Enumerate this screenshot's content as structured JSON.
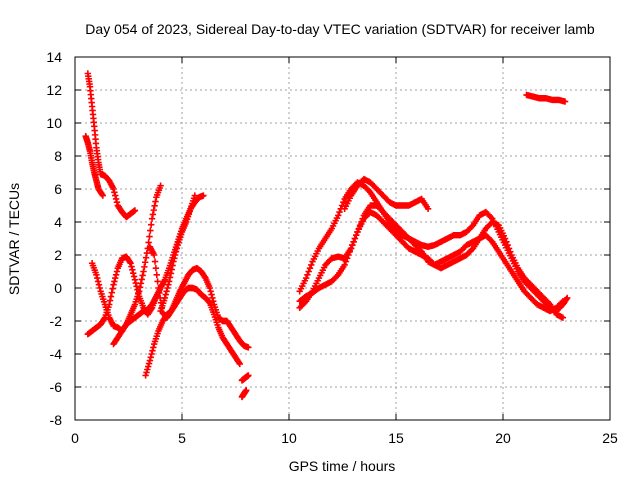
{
  "chart_data": {
    "type": "scatter",
    "title": "Day 054 of 2023, Sidereal Day-to-day VTEC variation (SDTVAR) for receiver lamb",
    "xlabel": "GPS time / hours",
    "ylabel": "SDTVAR / TECUs",
    "xlim": [
      0,
      25
    ],
    "ylim": [
      -8,
      14
    ],
    "xticks": [
      0,
      5,
      10,
      15,
      20,
      25
    ],
    "yticks": [
      -8,
      -6,
      -4,
      -2,
      0,
      2,
      4,
      6,
      8,
      10,
      12,
      14
    ],
    "grid": true,
    "marker": "+",
    "color": "#ff0000",
    "series": [
      {
        "name": "s1",
        "x": [
          0.6,
          0.7,
          0.8,
          0.9,
          1.0,
          1.1,
          1.2,
          1.4,
          1.6,
          1.8,
          2.0,
          2.2,
          2.4,
          2.6,
          2.8
        ],
        "y": [
          13.0,
          12.2,
          11.0,
          9.8,
          8.5,
          7.6,
          6.9,
          6.8,
          6.5,
          6.0,
          5.0,
          4.6,
          4.3,
          4.5,
          4.7
        ]
      },
      {
        "name": "s2",
        "x": [
          0.5,
          0.6,
          0.7,
          0.8,
          0.9,
          1.0,
          1.1,
          1.3
        ],
        "y": [
          9.2,
          8.8,
          8.3,
          7.6,
          7.0,
          6.5,
          6.0,
          5.6
        ]
      },
      {
        "name": "s3",
        "x": [
          0.6,
          0.8,
          1.0,
          1.2,
          1.4,
          1.6,
          1.8,
          2.0,
          2.2,
          2.4,
          2.6,
          2.8,
          3.0,
          3.2,
          3.4,
          3.6,
          3.8
        ],
        "y": [
          -2.8,
          -2.6,
          -2.4,
          -2.2,
          -1.8,
          -1.0,
          0.2,
          1.2,
          1.8,
          1.9,
          1.5,
          0.5,
          -0.5,
          -1.2,
          -1.6,
          -1.2,
          -0.5
        ]
      },
      {
        "name": "s4",
        "x": [
          0.8,
          1.0,
          1.2,
          1.4,
          1.6,
          1.8,
          2.0,
          2.2,
          2.4,
          2.6,
          2.8,
          3.0,
          3.2,
          3.4,
          3.6,
          3.8,
          4.0
        ],
        "y": [
          1.5,
          0.8,
          -0.2,
          -1.0,
          -1.8,
          -2.3,
          -2.4,
          -2.6,
          -2.2,
          -1.6,
          -1.0,
          -0.2,
          1.0,
          2.4,
          4.2,
          5.5,
          6.2
        ]
      },
      {
        "name": "s5",
        "x": [
          1.8,
          2.0,
          2.2,
          2.4,
          2.6,
          2.8,
          3.0,
          3.2,
          3.4,
          3.6,
          3.8,
          4.0,
          4.2,
          4.4,
          4.6,
          4.8,
          5.0,
          5.2,
          5.4,
          5.6,
          5.8,
          6.0
        ],
        "y": [
          -3.4,
          -3.0,
          -2.6,
          -2.2,
          -2.0,
          -1.8,
          -1.6,
          -1.4,
          -1.3,
          -1.0,
          -0.5,
          0.0,
          0.5,
          1.2,
          2.0,
          2.8,
          3.6,
          4.2,
          4.8,
          5.2,
          5.5,
          5.6
        ]
      },
      {
        "name": "s6",
        "x": [
          3.3,
          3.5,
          3.7,
          3.9,
          4.1,
          4.3,
          4.5,
          4.7,
          4.9,
          5.1,
          5.3,
          5.5,
          5.7,
          5.9,
          6.1,
          6.3,
          6.5,
          6.7,
          6.9,
          7.1,
          7.3,
          7.5,
          7.7
        ],
        "y": [
          -5.3,
          -4.4,
          -3.4,
          -2.6,
          -2.0,
          -1.6,
          -1.4,
          -1.0,
          -0.6,
          -0.2,
          0.0,
          0.0,
          -0.1,
          -0.4,
          -0.6,
          -0.9,
          -1.6,
          -2.4,
          -3.0,
          -3.4,
          -3.8,
          -4.2,
          -4.6
        ]
      },
      {
        "name": "s7",
        "x": [
          3.5,
          3.7,
          3.9,
          4.1,
          4.3,
          4.5,
          4.7,
          4.9,
          5.1,
          5.3,
          5.5,
          5.7,
          5.9,
          6.1,
          6.3,
          6.5,
          6.7,
          6.9,
          7.1,
          7.3,
          7.5,
          7.7,
          7.9,
          8.1
        ],
        "y": [
          2.5,
          2.0,
          0.0,
          -1.5,
          -1.8,
          -1.4,
          -0.8,
          -0.2,
          0.3,
          0.8,
          1.1,
          1.2,
          1.0,
          0.6,
          0.0,
          -1.0,
          -1.8,
          -2.0,
          -2.0,
          -2.4,
          -2.8,
          -3.2,
          -3.5,
          -3.6
        ]
      },
      {
        "name": "s8",
        "x": [
          4.0,
          4.2,
          4.4,
          4.6,
          4.8,
          5.0,
          5.2,
          5.4,
          5.6
        ],
        "y": [
          -1.4,
          -0.6,
          0.4,
          1.6,
          2.6,
          3.4,
          4.0,
          4.8,
          5.6
        ]
      },
      {
        "name": "s9",
        "x": [
          7.8,
          7.9,
          8.0,
          8.1
        ],
        "y": [
          -5.6,
          -5.5,
          -5.4,
          -5.3
        ]
      },
      {
        "name": "s10",
        "x": [
          7.8,
          7.9,
          8.0
        ],
        "y": [
          -6.6,
          -6.4,
          -6.2
        ]
      },
      {
        "name": "s11",
        "x": [
          10.5,
          10.8,
          11.1,
          11.4,
          11.7,
          12.0,
          12.3,
          12.6,
          12.9,
          13.2,
          13.5,
          13.8,
          14.1,
          14.4,
          14.7,
          15.0,
          15.3,
          15.6,
          15.9,
          16.2,
          16.5,
          16.8,
          17.1,
          17.4,
          17.7,
          18.0,
          18.3,
          18.6,
          18.9,
          19.2,
          19.5,
          19.8,
          20.1,
          20.4,
          20.7,
          21.0,
          21.3,
          21.6,
          21.9,
          22.2,
          22.5,
          22.8,
          23.0
        ],
        "y": [
          -0.2,
          0.6,
          1.6,
          2.4,
          3.0,
          3.6,
          4.4,
          5.4,
          6.0,
          6.4,
          6.2,
          5.8,
          5.2,
          4.6,
          4.2,
          3.8,
          3.4,
          3.0,
          2.8,
          2.6,
          2.5,
          2.6,
          2.8,
          3.0,
          3.2,
          3.2,
          3.4,
          3.8,
          4.4,
          4.6,
          4.2,
          3.4,
          2.6,
          1.8,
          1.0,
          0.4,
          0.0,
          -0.4,
          -0.8,
          -1.2,
          -1.4,
          -1.0,
          -0.6
        ]
      },
      {
        "name": "s12",
        "x": [
          10.5,
          10.8,
          11.1,
          11.4,
          11.7,
          12.0,
          12.3,
          12.6,
          12.9,
          13.2,
          13.5,
          13.8,
          14.1,
          14.4,
          14.7,
          15.0,
          15.3,
          15.6,
          15.9,
          16.2,
          16.5,
          16.8,
          17.1,
          17.4,
          17.7,
          18.0,
          18.3,
          18.6,
          18.9,
          19.2,
          19.5,
          19.8,
          20.1,
          20.4,
          20.7,
          21.0,
          21.3,
          21.6,
          21.9,
          22.2,
          22.5,
          22.8
        ],
        "y": [
          -1.2,
          -0.8,
          -0.2,
          0.6,
          1.4,
          1.8,
          1.9,
          1.8,
          2.4,
          3.4,
          4.2,
          4.6,
          4.4,
          4.0,
          3.6,
          3.2,
          2.8,
          2.4,
          2.2,
          2.0,
          1.8,
          1.4,
          1.2,
          1.4,
          1.6,
          1.8,
          2.0,
          2.4,
          3.0,
          3.6,
          4.0,
          3.8,
          3.0,
          2.0,
          1.2,
          0.6,
          0.2,
          -0.2,
          -0.6,
          -1.0,
          -1.6,
          -1.8
        ]
      },
      {
        "name": "s13",
        "x": [
          10.5,
          10.8,
          11.1,
          11.4,
          11.7,
          12.0,
          12.3,
          12.6,
          12.9,
          13.2,
          13.5,
          13.8,
          14.1,
          14.4,
          14.7,
          15.0,
          15.3,
          15.6,
          15.9,
          16.2,
          16.5,
          16.8,
          17.1,
          17.4,
          17.7,
          18.0,
          18.3,
          18.6,
          18.9,
          19.2,
          19.5,
          19.8,
          20.1,
          20.4,
          20.7,
          21.0,
          21.3,
          21.6,
          21.9,
          22.2,
          22.5,
          22.8
        ],
        "y": [
          -0.8,
          -0.5,
          -0.3,
          0.0,
          0.2,
          0.4,
          0.8,
          1.4,
          2.4,
          3.4,
          4.4,
          5.0,
          5.0,
          4.6,
          4.0,
          3.6,
          3.2,
          3.0,
          2.6,
          2.2,
          1.6,
          1.4,
          1.6,
          1.8,
          2.0,
          2.2,
          2.6,
          2.8,
          3.0,
          3.2,
          2.8,
          2.2,
          1.6,
          1.0,
          0.4,
          -0.2,
          -0.6,
          -1.0,
          -1.2,
          -1.4,
          -1.2,
          -0.8
        ]
      },
      {
        "name": "s14",
        "x": [
          12.6,
          12.9,
          13.2,
          13.5,
          13.8,
          14.1,
          14.4,
          14.7,
          15.0,
          15.3,
          15.6,
          15.9,
          16.2,
          16.5
        ],
        "y": [
          4.8,
          5.6,
          6.2,
          6.6,
          6.4,
          6.0,
          5.6,
          5.2,
          5.0,
          5.0,
          5.0,
          5.2,
          5.4,
          4.8
        ]
      },
      {
        "name": "s15",
        "x": [
          21.1,
          21.4,
          21.7,
          22.0,
          22.3,
          22.6,
          22.9
        ],
        "y": [
          11.7,
          11.6,
          11.5,
          11.5,
          11.4,
          11.4,
          11.3
        ]
      }
    ]
  }
}
